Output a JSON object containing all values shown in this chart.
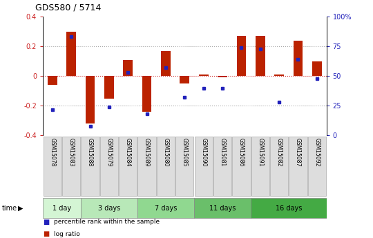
{
  "title": "GDS580 / 5714",
  "samples": [
    "GSM15078",
    "GSM15083",
    "GSM15088",
    "GSM15079",
    "GSM15084",
    "GSM15089",
    "GSM15080",
    "GSM15085",
    "GSM15090",
    "GSM15081",
    "GSM15086",
    "GSM15091",
    "GSM15082",
    "GSM15087",
    "GSM15092"
  ],
  "log_ratio": [
    -0.06,
    0.3,
    -0.32,
    -0.15,
    0.11,
    -0.24,
    0.17,
    -0.05,
    0.01,
    -0.01,
    0.27,
    0.27,
    0.01,
    0.24,
    0.1
  ],
  "percentile": [
    22,
    83,
    8,
    24,
    53,
    18,
    57,
    32,
    40,
    40,
    74,
    73,
    28,
    64,
    48
  ],
  "groups": [
    {
      "label": "1 day",
      "start": 0,
      "end": 2,
      "color": "#d4f5d4"
    },
    {
      "label": "3 days",
      "start": 2,
      "end": 5,
      "color": "#b8e8b8"
    },
    {
      "label": "7 days",
      "start": 5,
      "end": 8,
      "color": "#90d890"
    },
    {
      "label": "11 days",
      "start": 8,
      "end": 11,
      "color": "#6abf6a"
    },
    {
      "label": "16 days",
      "start": 11,
      "end": 15,
      "color": "#44aa44"
    }
  ],
  "bar_color": "#bb2200",
  "dot_color": "#2222bb",
  "ylim": [
    -0.4,
    0.4
  ],
  "y2lim": [
    0,
    100
  ],
  "yticks": [
    -0.4,
    -0.2,
    0.0,
    0.2,
    0.4
  ],
  "y2ticks": [
    0,
    25,
    50,
    75,
    100
  ],
  "y2labels": [
    "0",
    "25",
    "50",
    "75",
    "100%"
  ],
  "hline_color": "#cc2222",
  "grid_color": "#aaaaaa",
  "bar_width": 0.5,
  "label_bg": "#dddddd",
  "label_edge": "#aaaaaa"
}
